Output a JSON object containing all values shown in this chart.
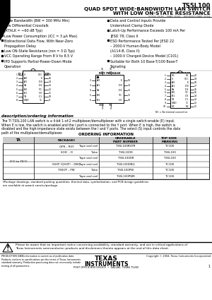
{
  "title_part": "TS5L100",
  "title_line1": "QUAD SPDT WIDE-BANDWIDTH LAN SWITCH",
  "title_line2": "WITH LOW ON-STATE RESISTANCE",
  "title_subtitle": "SCDS 1626 – MAY 2004 – REVISED MAY 2004",
  "features_left_text": [
    "Wide Bandwidth (BW = 300 MHz Min)",
    "Low Differential Crosstalk",
    "  (XTALK = −60 dB Typ)",
    "Low Power Consumption (ICC = 3 μA Max)",
    "Bidirectional Data Flow, With Near-Zero",
    "  Propagation Delay",
    "Low ON-State Resistance (ron = 3 Ω Typ)",
    "VCC Operating Range From 8 V to 8.5 V",
    "IPD Supports Partial-Power-Down Mode",
    "  Operation"
  ],
  "features_right_text": [
    "Data and Control Inputs Provide",
    "  Undershoot Clamp Diode",
    "Latch-Up Performance Exceeds 100 mA Per",
    "  JESD 78, Class II",
    "ESD Performance Tested Per JESD 22",
    "  – 2000-V Human-Body Model",
    "     (A114-B, Class II)",
    "  – 1000-V Charged-Device Model (C101)",
    "Suitable for Both 10 Base-T/100 Base-T",
    "  Signaling"
  ],
  "pkg1_label": "D OR DBQ PACKAGE",
  "pkg1_sublabel": "(TOP VIEW)",
  "pkg2_label": "RGY PACKAGE",
  "pkg2_sublabel": "(TOP VIEW)",
  "pkg3_label": "PW PACKAGE",
  "pkg3_sublabel": "(TOP VIEW)",
  "pkg1_pins_left": [
    "S",
    "IA0",
    "IA1",
    "YA",
    "IB0",
    "IB1",
    "YB",
    "GND"
  ],
  "pkg1_pins_right": [
    "VCC",
    "E",
    "ID0",
    "ID1",
    "YD",
    "IC0",
    "IC1",
    "YC"
  ],
  "pkg3_pins_left": [
    "NC",
    "S",
    "IA0",
    "IA1",
    "YA",
    "IB0",
    "IB1",
    "YB",
    "GND",
    "NC"
  ],
  "pkg3_pins_right": [
    "NC",
    "VCC",
    "E",
    "ID0",
    "ID1",
    "YD",
    "IC0",
    "IC1",
    "YC",
    "NC"
  ],
  "nc_note": "NC = No internal connection",
  "desc_title": "description/ordering information",
  "desc_text": "The TI TS5L100 LAN switch is a 4-bit 1-of-2 multiplexer/demultiplexer with a single switch-enable (E) input. When E is low, the switch is enabled and the I port is connected to the Y port. When E is high, the switch is disabled and the high-impedance state exists between the I and Y ports. The select (S) input controls the data path of the multiplexer/demultiplexer.",
  "order_title": "ORDERING INFORMATION",
  "order_header": [
    "TA",
    "PACKAGE†",
    "ORDERABLE\nPART NUMBER",
    "TOP-SIDE\nMARKING"
  ],
  "order_ta": "0°C to 70°C",
  "order_rows": [
    [
      "QFN – RGY",
      "Tape and reel",
      "TS5L100RGYR",
      "TC100"
    ],
    [
      "SOIC – D",
      "Tube",
      "TS5L100D",
      "TS5L100"
    ],
    [
      "",
      "Tape and reel",
      "TS5L100DR",
      "TS5L100"
    ],
    [
      "SSOP (QSOP) – DBQ",
      "Tape and reel",
      "TS5L100DBQ",
      "TC100"
    ],
    [
      "TSSOP – PW",
      "Tube",
      "TS5L100PW",
      "TC100"
    ],
    [
      "",
      "Tape and reel",
      "TS5L100PWR",
      "TC100"
    ]
  ],
  "footer_note": "†Package drawings, standard packing quantities, thermal data, symbolization, and PCB design guidelines\nare available at www.ti.com/sc/package.",
  "warning_text": "Please be aware that an important notice concerning availability, standard warranty, and use in critical applications of\nTexas Instruments semiconductor products and disclaimers thereto appears at the end of this data sheet.",
  "prod_text": "PRODUCTION DATA information is current as of publication date.\nProducts conform to specifications per the terms of Texas Instruments\nstandard warranty. Production processing does not necessarily include\ntesting of all parameters.",
  "copyright": "Copyright © 2004, Texas Instruments Incorporated",
  "address": "POST OFFICE BOX 655303  •  DALLAS, TEXAS 75265",
  "page_num": "1",
  "bg_color": "#ffffff"
}
